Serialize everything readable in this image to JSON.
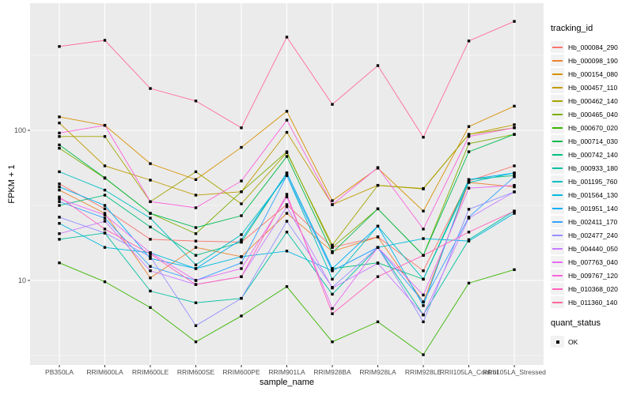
{
  "chart_data": {
    "type": "line",
    "title": "",
    "xlabel": "sample_name",
    "ylabel": "FPKM + 1",
    "y_scale": "log10",
    "ylim": [
      3,
      700
    ],
    "y_major_ticks": [
      10,
      100
    ],
    "y_minor_gridlines": [
      3.162,
      31.623,
      316.228
    ],
    "grid": true,
    "legend_position": "right",
    "legend_title": "tracking_id",
    "panel_bg": "#EBEBEB",
    "grid_color": "#FFFFFF",
    "tick_label_color": "#4D4D4D",
    "tick_mark_color": "#333333",
    "point_color": "#000000",
    "point_shape": "square",
    "categories": [
      "PB350LA",
      "RRIM600LA",
      "RRIM600LE",
      "RRIM600SE",
      "RRIM600PE",
      "RRIM901LA",
      "RRIM928BA",
      "RRIM928LA",
      "RRIM928LE",
      "RRII105LA_Control",
      "RRII105LA_Stressed"
    ],
    "series": [
      {
        "name": "Hb_000084_290",
        "color": "#F8766D",
        "values": [
          44,
          30,
          18.8,
          18.3,
          18,
          32,
          16.6,
          19.5,
          11.6,
          46,
          58
        ]
      },
      {
        "name": "Hb_000098_190",
        "color": "#EA8331",
        "values": [
          40,
          28,
          10.4,
          16.6,
          14.4,
          28,
          15.6,
          19.5,
          7.2,
          45,
          42
        ]
      },
      {
        "name": "Hb_000154_080",
        "color": "#D89000",
        "values": [
          123,
          108,
          60,
          47,
          77,
          134,
          34,
          56,
          29,
          106,
          145
        ]
      },
      {
        "name": "Hb_000457_110",
        "color": "#C09B00",
        "values": [
          112,
          58,
          46.6,
          37,
          39,
          97,
          32,
          43,
          41,
          94,
          109
        ]
      },
      {
        "name": "Hb_000462_140",
        "color": "#A3A500",
        "values": [
          91,
          91,
          33.5,
          53,
          32.4,
          71,
          17.2,
          43,
          40.7,
          94,
          104
        ]
      },
      {
        "name": "Hb_000465_040",
        "color": "#7CAE00",
        "values": [
          76,
          48,
          28,
          20.5,
          39,
          72,
          16.6,
          30,
          14.7,
          81.5,
          94
        ]
      },
      {
        "name": "Hb_000670_020",
        "color": "#39B600",
        "values": [
          13.1,
          9.8,
          6.6,
          3.9,
          5.8,
          9.1,
          3.9,
          5.3,
          3.2,
          9.6,
          11.8
        ]
      },
      {
        "name": "Hb_000714_030",
        "color": "#00BB4E",
        "values": [
          80,
          48.3,
          28,
          22.5,
          27,
          67,
          15.3,
          30,
          14.7,
          72,
          94
        ]
      },
      {
        "name": "Hb_000742_140",
        "color": "#00BF7D",
        "values": [
          31.6,
          37,
          22.7,
          14.7,
          18,
          52,
          12,
          13.1,
          10.2,
          47,
          50
        ]
      },
      {
        "name": "Hb_000933_180",
        "color": "#00C1A3",
        "values": [
          18.8,
          20.7,
          8.5,
          7.1,
          7.6,
          21,
          8.1,
          16.6,
          5.9,
          18.7,
          29
        ]
      },
      {
        "name": "Hb_001195_760",
        "color": "#00BFC4",
        "values": [
          53,
          40,
          26,
          12.7,
          20.2,
          50,
          10.2,
          23,
          10.2,
          45,
          52
        ]
      },
      {
        "name": "Hb_001564_130",
        "color": "#00BAE0",
        "values": [
          24,
          16.6,
          15.3,
          12,
          14.4,
          15.7,
          11.6,
          16.6,
          19,
          18.3,
          28
        ]
      },
      {
        "name": "Hb_001951_140",
        "color": "#00B0F6",
        "values": [
          42,
          31.6,
          14,
          12,
          18.7,
          52,
          12,
          23,
          6.8,
          47,
          52
        ]
      },
      {
        "name": "Hb_002411_170",
        "color": "#35A2FF",
        "values": [
          33.5,
          26,
          12.4,
          10,
          13.1,
          50,
          11.6,
          16.6,
          7.2,
          26.4,
          49
        ]
      },
      {
        "name": "Hb_002477_240",
        "color": "#9590FF",
        "values": [
          26.4,
          20.7,
          14.4,
          5,
          7.6,
          24.8,
          9,
          16.6,
          5.3,
          29.8,
          38.9
        ]
      },
      {
        "name": "Hb_004440_050",
        "color": "#C77CFF",
        "values": [
          20.5,
          24.8,
          11.6,
          9.4,
          10.6,
          31,
          8.9,
          13,
          5.9,
          26,
          38.9
        ]
      },
      {
        "name": "Hb_007763_040",
        "color": "#E76BF3",
        "values": [
          35,
          27.3,
          15.3,
          10,
          12,
          36,
          6.5,
          16.6,
          8,
          41.2,
          43
        ]
      },
      {
        "name": "Hb_009767_120",
        "color": "#FA62DB",
        "values": [
          96,
          108,
          33.5,
          30.5,
          46,
          117,
          32,
          56.5,
          22,
          91,
          104
        ]
      },
      {
        "name": "Hb_010368_020",
        "color": "#FF62BC",
        "values": [
          36,
          22,
          15,
          9.4,
          10.6,
          37.5,
          6,
          10.6,
          14.7,
          21,
          29
        ]
      },
      {
        "name": "Hb_011360_140",
        "color": "#FF6A98",
        "values": [
          362,
          398,
          190,
          157,
          104,
          418,
          149,
          270,
          90,
          394,
          532
        ]
      }
    ],
    "legend2": {
      "title": "quant_status",
      "items": [
        "OK"
      ]
    }
  }
}
